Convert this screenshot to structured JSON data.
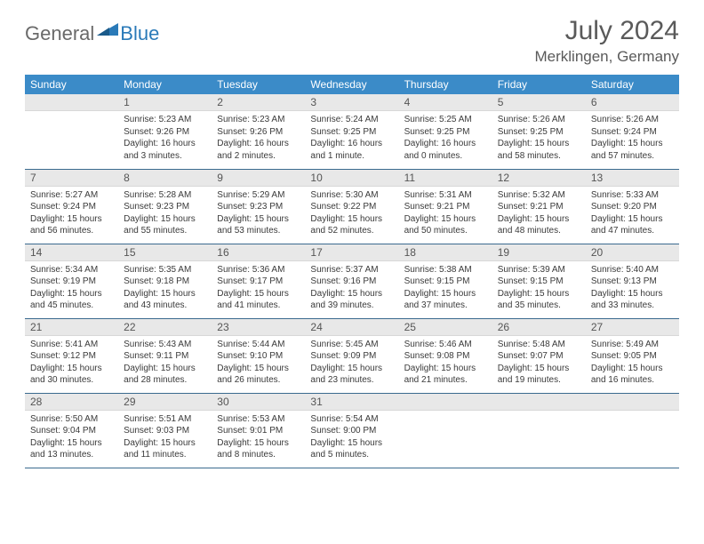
{
  "brand": {
    "part1": "General",
    "part2": "Blue"
  },
  "title": "July 2024",
  "location": "Merklingen, Germany",
  "colors": {
    "header_bg": "#3b8bc8",
    "header_text": "#ffffff",
    "daynum_bg": "#e8e8e8",
    "text": "#3a3a3a",
    "rule": "#3b6a8f",
    "logo_gray": "#6a6a6a",
    "logo_blue": "#2a7ab8"
  },
  "weekdays": [
    "Sunday",
    "Monday",
    "Tuesday",
    "Wednesday",
    "Thursday",
    "Friday",
    "Saturday"
  ],
  "weeks": [
    [
      {
        "n": "",
        "sr": "",
        "ss": "",
        "dl": ""
      },
      {
        "n": "1",
        "sr": "Sunrise: 5:23 AM",
        "ss": "Sunset: 9:26 PM",
        "dl": "Daylight: 16 hours and 3 minutes."
      },
      {
        "n": "2",
        "sr": "Sunrise: 5:23 AM",
        "ss": "Sunset: 9:26 PM",
        "dl": "Daylight: 16 hours and 2 minutes."
      },
      {
        "n": "3",
        "sr": "Sunrise: 5:24 AM",
        "ss": "Sunset: 9:25 PM",
        "dl": "Daylight: 16 hours and 1 minute."
      },
      {
        "n": "4",
        "sr": "Sunrise: 5:25 AM",
        "ss": "Sunset: 9:25 PM",
        "dl": "Daylight: 16 hours and 0 minutes."
      },
      {
        "n": "5",
        "sr": "Sunrise: 5:26 AM",
        "ss": "Sunset: 9:25 PM",
        "dl": "Daylight: 15 hours and 58 minutes."
      },
      {
        "n": "6",
        "sr": "Sunrise: 5:26 AM",
        "ss": "Sunset: 9:24 PM",
        "dl": "Daylight: 15 hours and 57 minutes."
      }
    ],
    [
      {
        "n": "7",
        "sr": "Sunrise: 5:27 AM",
        "ss": "Sunset: 9:24 PM",
        "dl": "Daylight: 15 hours and 56 minutes."
      },
      {
        "n": "8",
        "sr": "Sunrise: 5:28 AM",
        "ss": "Sunset: 9:23 PM",
        "dl": "Daylight: 15 hours and 55 minutes."
      },
      {
        "n": "9",
        "sr": "Sunrise: 5:29 AM",
        "ss": "Sunset: 9:23 PM",
        "dl": "Daylight: 15 hours and 53 minutes."
      },
      {
        "n": "10",
        "sr": "Sunrise: 5:30 AM",
        "ss": "Sunset: 9:22 PM",
        "dl": "Daylight: 15 hours and 52 minutes."
      },
      {
        "n": "11",
        "sr": "Sunrise: 5:31 AM",
        "ss": "Sunset: 9:21 PM",
        "dl": "Daylight: 15 hours and 50 minutes."
      },
      {
        "n": "12",
        "sr": "Sunrise: 5:32 AM",
        "ss": "Sunset: 9:21 PM",
        "dl": "Daylight: 15 hours and 48 minutes."
      },
      {
        "n": "13",
        "sr": "Sunrise: 5:33 AM",
        "ss": "Sunset: 9:20 PM",
        "dl": "Daylight: 15 hours and 47 minutes."
      }
    ],
    [
      {
        "n": "14",
        "sr": "Sunrise: 5:34 AM",
        "ss": "Sunset: 9:19 PM",
        "dl": "Daylight: 15 hours and 45 minutes."
      },
      {
        "n": "15",
        "sr": "Sunrise: 5:35 AM",
        "ss": "Sunset: 9:18 PM",
        "dl": "Daylight: 15 hours and 43 minutes."
      },
      {
        "n": "16",
        "sr": "Sunrise: 5:36 AM",
        "ss": "Sunset: 9:17 PM",
        "dl": "Daylight: 15 hours and 41 minutes."
      },
      {
        "n": "17",
        "sr": "Sunrise: 5:37 AM",
        "ss": "Sunset: 9:16 PM",
        "dl": "Daylight: 15 hours and 39 minutes."
      },
      {
        "n": "18",
        "sr": "Sunrise: 5:38 AM",
        "ss": "Sunset: 9:15 PM",
        "dl": "Daylight: 15 hours and 37 minutes."
      },
      {
        "n": "19",
        "sr": "Sunrise: 5:39 AM",
        "ss": "Sunset: 9:15 PM",
        "dl": "Daylight: 15 hours and 35 minutes."
      },
      {
        "n": "20",
        "sr": "Sunrise: 5:40 AM",
        "ss": "Sunset: 9:13 PM",
        "dl": "Daylight: 15 hours and 33 minutes."
      }
    ],
    [
      {
        "n": "21",
        "sr": "Sunrise: 5:41 AM",
        "ss": "Sunset: 9:12 PM",
        "dl": "Daylight: 15 hours and 30 minutes."
      },
      {
        "n": "22",
        "sr": "Sunrise: 5:43 AM",
        "ss": "Sunset: 9:11 PM",
        "dl": "Daylight: 15 hours and 28 minutes."
      },
      {
        "n": "23",
        "sr": "Sunrise: 5:44 AM",
        "ss": "Sunset: 9:10 PM",
        "dl": "Daylight: 15 hours and 26 minutes."
      },
      {
        "n": "24",
        "sr": "Sunrise: 5:45 AM",
        "ss": "Sunset: 9:09 PM",
        "dl": "Daylight: 15 hours and 23 minutes."
      },
      {
        "n": "25",
        "sr": "Sunrise: 5:46 AM",
        "ss": "Sunset: 9:08 PM",
        "dl": "Daylight: 15 hours and 21 minutes."
      },
      {
        "n": "26",
        "sr": "Sunrise: 5:48 AM",
        "ss": "Sunset: 9:07 PM",
        "dl": "Daylight: 15 hours and 19 minutes."
      },
      {
        "n": "27",
        "sr": "Sunrise: 5:49 AM",
        "ss": "Sunset: 9:05 PM",
        "dl": "Daylight: 15 hours and 16 minutes."
      }
    ],
    [
      {
        "n": "28",
        "sr": "Sunrise: 5:50 AM",
        "ss": "Sunset: 9:04 PM",
        "dl": "Daylight: 15 hours and 13 minutes."
      },
      {
        "n": "29",
        "sr": "Sunrise: 5:51 AM",
        "ss": "Sunset: 9:03 PM",
        "dl": "Daylight: 15 hours and 11 minutes."
      },
      {
        "n": "30",
        "sr": "Sunrise: 5:53 AM",
        "ss": "Sunset: 9:01 PM",
        "dl": "Daylight: 15 hours and 8 minutes."
      },
      {
        "n": "31",
        "sr": "Sunrise: 5:54 AM",
        "ss": "Sunset: 9:00 PM",
        "dl": "Daylight: 15 hours and 5 minutes."
      },
      {
        "n": "",
        "sr": "",
        "ss": "",
        "dl": ""
      },
      {
        "n": "",
        "sr": "",
        "ss": "",
        "dl": ""
      },
      {
        "n": "",
        "sr": "",
        "ss": "",
        "dl": ""
      }
    ]
  ]
}
